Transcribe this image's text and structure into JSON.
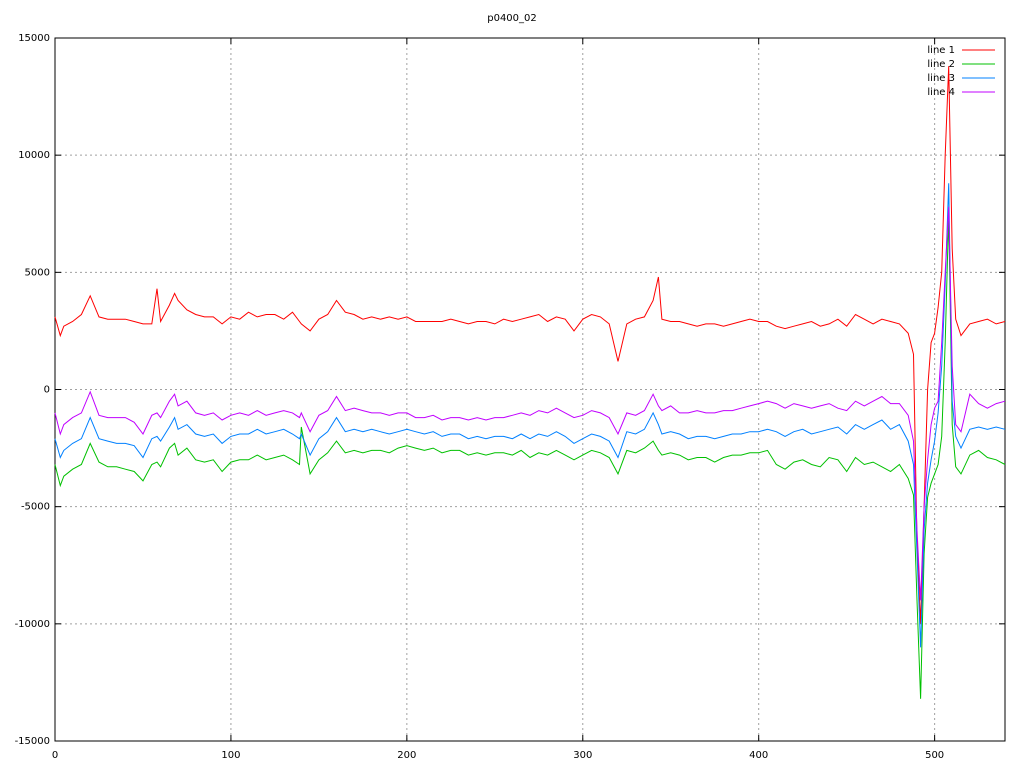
{
  "chart_data": {
    "type": "line",
    "title": "p0400_02",
    "xlim": [
      0,
      540
    ],
    "xticks": [
      0,
      100,
      200,
      300,
      400,
      500
    ],
    "ylim": [
      -15000,
      15000
    ],
    "yticks": [
      -15000,
      -10000,
      -5000,
      0,
      5000,
      10000,
      15000
    ],
    "grid": true,
    "legend": "top-right",
    "x": [
      0,
      3,
      5,
      10,
      15,
      20,
      25,
      30,
      35,
      40,
      45,
      50,
      55,
      58,
      60,
      65,
      68,
      70,
      75,
      80,
      85,
      90,
      95,
      100,
      105,
      110,
      115,
      120,
      125,
      130,
      135,
      139,
      140,
      145,
      150,
      155,
      160,
      165,
      170,
      175,
      180,
      185,
      190,
      195,
      200,
      205,
      210,
      215,
      220,
      225,
      230,
      235,
      240,
      245,
      250,
      255,
      260,
      265,
      270,
      275,
      280,
      285,
      290,
      295,
      300,
      305,
      310,
      315,
      320,
      325,
      330,
      335,
      340,
      343,
      345,
      350,
      355,
      360,
      365,
      370,
      375,
      380,
      385,
      390,
      395,
      400,
      405,
      410,
      415,
      420,
      425,
      430,
      435,
      440,
      445,
      450,
      455,
      460,
      465,
      470,
      475,
      480,
      485,
      488,
      490,
      492,
      494,
      496,
      498,
      500,
      502,
      504,
      506,
      508,
      510,
      512,
      515,
      520,
      525,
      530,
      535,
      540
    ],
    "series": [
      {
        "name": "line 1",
        "color": "#ff0000",
        "values": [
          3100,
          2300,
          2700,
          2900,
          3200,
          4000,
          3100,
          3000,
          3000,
          3000,
          2900,
          2800,
          2800,
          4300,
          2900,
          3600,
          4100,
          3800,
          3400,
          3200,
          3100,
          3100,
          2800,
          3100,
          3000,
          3300,
          3100,
          3200,
          3200,
          3000,
          3300,
          2900,
          2800,
          2500,
          3000,
          3200,
          3800,
          3300,
          3200,
          3000,
          3100,
          3000,
          3100,
          3000,
          3100,
          2900,
          2900,
          2900,
          2900,
          3000,
          2900,
          2800,
          2900,
          2900,
          2800,
          3000,
          2900,
          3000,
          3100,
          3200,
          2900,
          3100,
          3000,
          2500,
          3000,
          3200,
          3100,
          2800,
          1200,
          2800,
          3000,
          3100,
          3800,
          4800,
          3000,
          2900,
          2900,
          2800,
          2700,
          2800,
          2800,
          2700,
          2800,
          2900,
          3000,
          2900,
          2900,
          2700,
          2600,
          2700,
          2800,
          2900,
          2700,
          2800,
          3000,
          2700,
          3200,
          3000,
          2800,
          3000,
          2900,
          2800,
          2400,
          1500,
          -6500,
          -10000,
          -5000,
          0,
          2000,
          2400,
          3500,
          5000,
          10000,
          13800,
          6000,
          3000,
          2300,
          2800,
          2900,
          3000,
          2800,
          2900
        ]
      },
      {
        "name": "line 2",
        "color": "#00c000",
        "values": [
          -3200,
          -4100,
          -3700,
          -3400,
          -3200,
          -2300,
          -3100,
          -3300,
          -3300,
          -3400,
          -3500,
          -3900,
          -3200,
          -3100,
          -3300,
          -2500,
          -2300,
          -2800,
          -2500,
          -3000,
          -3100,
          -3000,
          -3500,
          -3100,
          -3000,
          -3000,
          -2800,
          -3000,
          -2900,
          -2800,
          -3000,
          -3200,
          -1600,
          -3600,
          -3000,
          -2700,
          -2200,
          -2700,
          -2600,
          -2700,
          -2600,
          -2600,
          -2700,
          -2500,
          -2400,
          -2500,
          -2600,
          -2500,
          -2700,
          -2600,
          -2600,
          -2800,
          -2700,
          -2800,
          -2700,
          -2700,
          -2800,
          -2600,
          -2900,
          -2700,
          -2800,
          -2600,
          -2800,
          -3000,
          -2800,
          -2600,
          -2700,
          -2900,
          -3600,
          -2600,
          -2700,
          -2500,
          -2200,
          -2600,
          -2800,
          -2700,
          -2800,
          -3000,
          -2900,
          -2900,
          -3100,
          -2900,
          -2800,
          -2800,
          -2700,
          -2700,
          -2600,
          -3200,
          -3400,
          -3100,
          -3000,
          -3200,
          -3300,
          -2900,
          -3000,
          -3500,
          -2900,
          -3200,
          -3100,
          -3300,
          -3500,
          -3200,
          -3800,
          -4500,
          -9000,
          -13200,
          -7000,
          -4600,
          -4000,
          -3600,
          -3200,
          -2000,
          2000,
          7500,
          -1500,
          -3300,
          -3600,
          -2800,
          -2600,
          -2900,
          -3000,
          -3200
        ]
      },
      {
        "name": "line 3",
        "color": "#0080ff",
        "values": [
          -2100,
          -2900,
          -2600,
          -2300,
          -2100,
          -1200,
          -2100,
          -2200,
          -2300,
          -2300,
          -2400,
          -2900,
          -2100,
          -2000,
          -2200,
          -1600,
          -1200,
          -1700,
          -1500,
          -1900,
          -2000,
          -1900,
          -2300,
          -2000,
          -1900,
          -1900,
          -1700,
          -1900,
          -1800,
          -1700,
          -1900,
          -2100,
          -1900,
          -2800,
          -2100,
          -1800,
          -1200,
          -1800,
          -1700,
          -1800,
          -1700,
          -1800,
          -1900,
          -1800,
          -1700,
          -1800,
          -1900,
          -1800,
          -2000,
          -1900,
          -1900,
          -2100,
          -2000,
          -2100,
          -2000,
          -2000,
          -2100,
          -1900,
          -2100,
          -1900,
          -2000,
          -1800,
          -2000,
          -2300,
          -2100,
          -1900,
          -2000,
          -2200,
          -2900,
          -1800,
          -1900,
          -1700,
          -1000,
          -1500,
          -1900,
          -1800,
          -1900,
          -2100,
          -2000,
          -2000,
          -2100,
          -2000,
          -1900,
          -1900,
          -1800,
          -1800,
          -1700,
          -1800,
          -2000,
          -1800,
          -1700,
          -1900,
          -1800,
          -1700,
          -1600,
          -1900,
          -1500,
          -1700,
          -1500,
          -1300,
          -1700,
          -1500,
          -2200,
          -3200,
          -7000,
          -11000,
          -6000,
          -4000,
          -3000,
          -2200,
          -1000,
          1000,
          4500,
          8800,
          -500,
          -2000,
          -2500,
          -1700,
          -1600,
          -1700,
          -1600,
          -1700
        ]
      },
      {
        "name": "line 4",
        "color": "#c000ff",
        "values": [
          -1000,
          -1900,
          -1500,
          -1200,
          -1000,
          -100,
          -1100,
          -1200,
          -1200,
          -1200,
          -1400,
          -1900,
          -1100,
          -1000,
          -1200,
          -500,
          -200,
          -700,
          -500,
          -1000,
          -1100,
          -1000,
          -1300,
          -1100,
          -1000,
          -1100,
          -900,
          -1100,
          -1000,
          -900,
          -1000,
          -1200,
          -1000,
          -1800,
          -1100,
          -900,
          -300,
          -900,
          -800,
          -900,
          -1000,
          -1000,
          -1100,
          -1000,
          -1000,
          -1200,
          -1200,
          -1100,
          -1300,
          -1200,
          -1200,
          -1300,
          -1200,
          -1300,
          -1200,
          -1200,
          -1100,
          -1000,
          -1100,
          -900,
          -1000,
          -800,
          -1000,
          -1200,
          -1100,
          -900,
          -1000,
          -1200,
          -1900,
          -1000,
          -1100,
          -900,
          -200,
          -700,
          -900,
          -700,
          -1000,
          -1000,
          -900,
          -1000,
          -1000,
          -900,
          -900,
          -800,
          -700,
          -600,
          -500,
          -600,
          -800,
          -600,
          -700,
          -800,
          -700,
          -600,
          -800,
          -900,
          -500,
          -700,
          -500,
          -300,
          -600,
          -600,
          -1100,
          -2200,
          -6000,
          -9000,
          -5000,
          -3000,
          -1500,
          -800,
          -500,
          2000,
          5000,
          7800,
          1000,
          -1500,
          -1800,
          -200,
          -600,
          -800,
          -600,
          -500
        ]
      }
    ]
  }
}
